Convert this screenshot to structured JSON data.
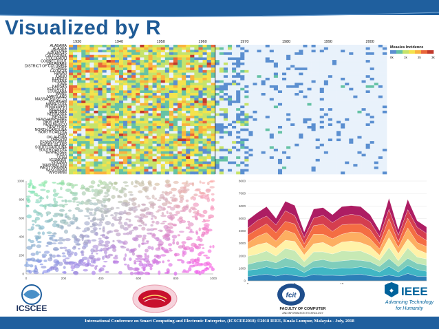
{
  "slide": {
    "title": "Visualized by R",
    "footer": "International Conference on Smart Computing and Electronic Enterprise, (ICSCEE2018) ©2018 IEEE, Kuala Lumpur, Malaysia - July, 2018"
  },
  "colors": {
    "banner": "#1f5f9e",
    "title": "#1f5b96"
  },
  "logos": {
    "icscee": {
      "label": "ICSCEE"
    },
    "ieee": {
      "label": "IEEE",
      "tagline_1": "Advancing Technology",
      "tagline_2": "for Humanity"
    },
    "fcit": {
      "label_1": "FACULTY OF COMPUTER",
      "label_2": "AND INFORMATION TECHNOLOGY"
    }
  },
  "chart_data": [
    {
      "type": "heatmap",
      "legend_title": "Measles Incidence",
      "legend_ticks": [
        "0k",
        "1k",
        "2k",
        "3k"
      ],
      "x_ticks": [
        "1930",
        "1940",
        "1950",
        "1960",
        "1970",
        "1980",
        "1990",
        "2000"
      ],
      "rows": [
        "ALABAMA",
        "ALASKA",
        "ARIZONA",
        "ARKANSAS",
        "CALIFORNIA",
        "COLORADO",
        "CONNECTICUT",
        "DELAWARE",
        "DISTRICT OF COLUMBIA",
        "FLORIDA",
        "GEORGIA",
        "HAWAII",
        "IDAHO",
        "ILLINOIS",
        "INDIANA",
        "IOWA",
        "KANSAS",
        "KENTUCKY",
        "LOUISIANA",
        "MAINE",
        "MARYLAND",
        "MASSACHUSETTS",
        "MICHIGAN",
        "MINNESOTA",
        "MISSISSIPPI",
        "MISSOURI",
        "MONTANA",
        "NEBRASKA",
        "NEVADA",
        "NEW HAMPSHIRE",
        "NEW JERSEY",
        "NEW MEXICO",
        "NEW YORK",
        "NORTH CAROLINA",
        "NORTH DAKOTA",
        "OHIO",
        "OKLAHOMA",
        "OREGON",
        "PENNSYLVANIA",
        "RHODE ISLAND",
        "SOUTH CAROLINA",
        "SOUTH DAKOTA",
        "TENNESSEE",
        "TEXAS",
        "UTAH",
        "VERMONT",
        "VIRGINIA",
        "WASHINGTON",
        "WEST VIRGINIA",
        "WISCONSIN",
        "WYOMING"
      ],
      "year_start": 1928,
      "year_end": 2003,
      "vaccine_year": 1963
    },
    {
      "type": "scatter",
      "x_ticks": [
        "0",
        "200",
        "400",
        "600",
        "800",
        "1000"
      ],
      "y_ticks": [
        "0",
        "200",
        "400",
        "600",
        "800",
        "1000"
      ],
      "xlim": [
        0,
        1000
      ],
      "ylim": [
        0,
        1000
      ]
    },
    {
      "type": "area",
      "x_ticks": [
        "0",
        "5",
        "10",
        "15"
      ],
      "y_ticks": [
        "0",
        "1000",
        "2000",
        "3000",
        "4000",
        "5000",
        "6000",
        "7000",
        "8000"
      ],
      "xlim": [
        0,
        19
      ],
      "ylim": [
        0,
        8000
      ],
      "x": [
        0,
        1,
        2,
        3,
        4,
        5,
        6,
        7,
        8,
        9,
        10,
        11,
        12,
        13,
        14,
        15,
        16,
        17,
        18,
        19
      ],
      "totals": [
        5000,
        5700,
        6100,
        5200,
        6500,
        6200,
        4100,
        5900,
        6100,
        5400,
        6100,
        6300,
        6100,
        5500,
        4100,
        6800,
        4300,
        6700,
        5000,
        4400
      ]
    }
  ]
}
